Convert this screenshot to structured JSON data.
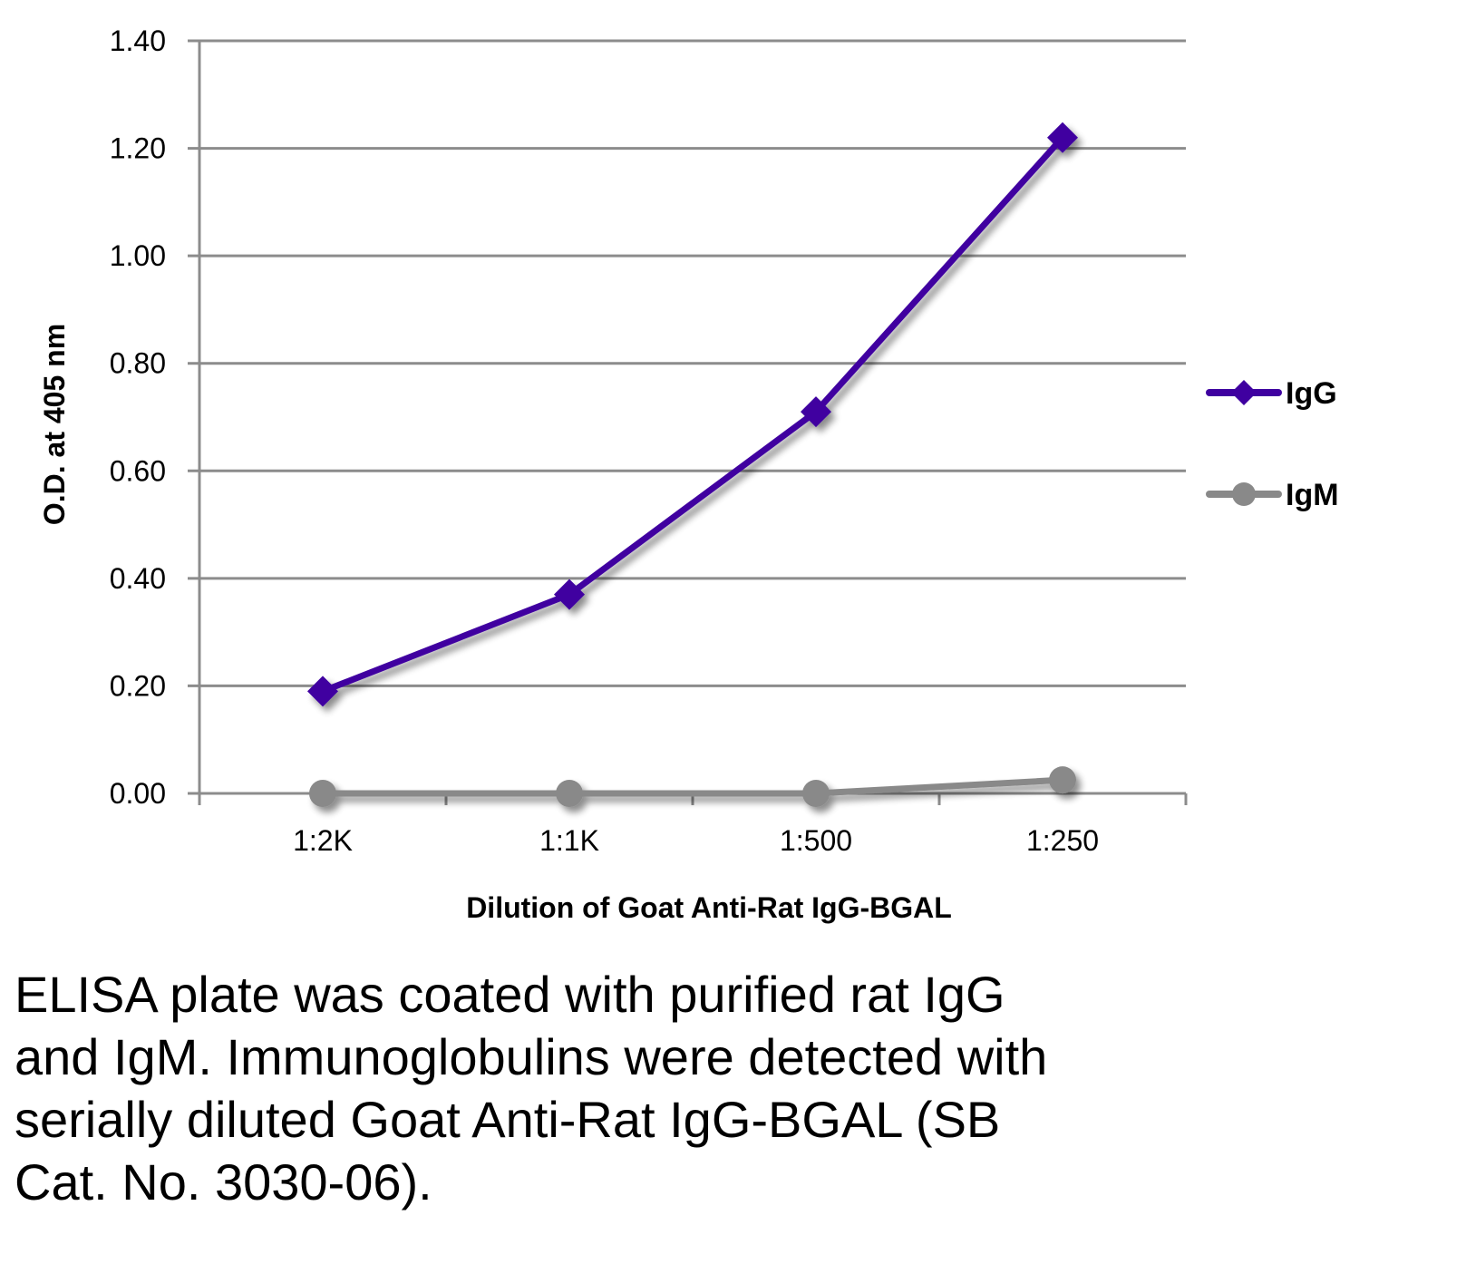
{
  "chart_data": {
    "type": "line",
    "title": "",
    "xlabel": "Dilution of Goat Anti-Rat IgG-BGAL",
    "ylabel": "O.D. at 405 nm",
    "categories": [
      "1:2K",
      "1:1K",
      "1:500",
      "1:250"
    ],
    "ylim": [
      0,
      1.4
    ],
    "yticks": [
      "0.00",
      "0.20",
      "0.40",
      "0.60",
      "0.80",
      "1.00",
      "1.20",
      "1.40"
    ],
    "ytick_values": [
      0,
      0.2,
      0.4,
      0.6,
      0.8,
      1.0,
      1.2,
      1.4
    ],
    "grid": true,
    "legend_position": "right",
    "series": [
      {
        "name": "IgG",
        "values": [
          0.19,
          0.37,
          0.71,
          1.22
        ],
        "color": "#3f00a0",
        "marker": "diamond"
      },
      {
        "name": "IgM",
        "values": [
          0.0,
          0.0,
          0.0,
          0.025
        ],
        "color": "#898989",
        "marker": "circle"
      }
    ]
  },
  "caption": "ELISA plate was coated with purified rat IgG and IgM.  Immunoglobulins were detected with serially diluted Goat Anti-Rat IgG-BGAL (SB Cat. No. 3030-06).",
  "caption_lines": [
    "ELISA plate was coated with purified rat IgG",
    "and IgM.  Immunoglobulins were detected with",
    "serially diluted Goat Anti-Rat IgG-BGAL (SB",
    "Cat. No. 3030-06)."
  ]
}
